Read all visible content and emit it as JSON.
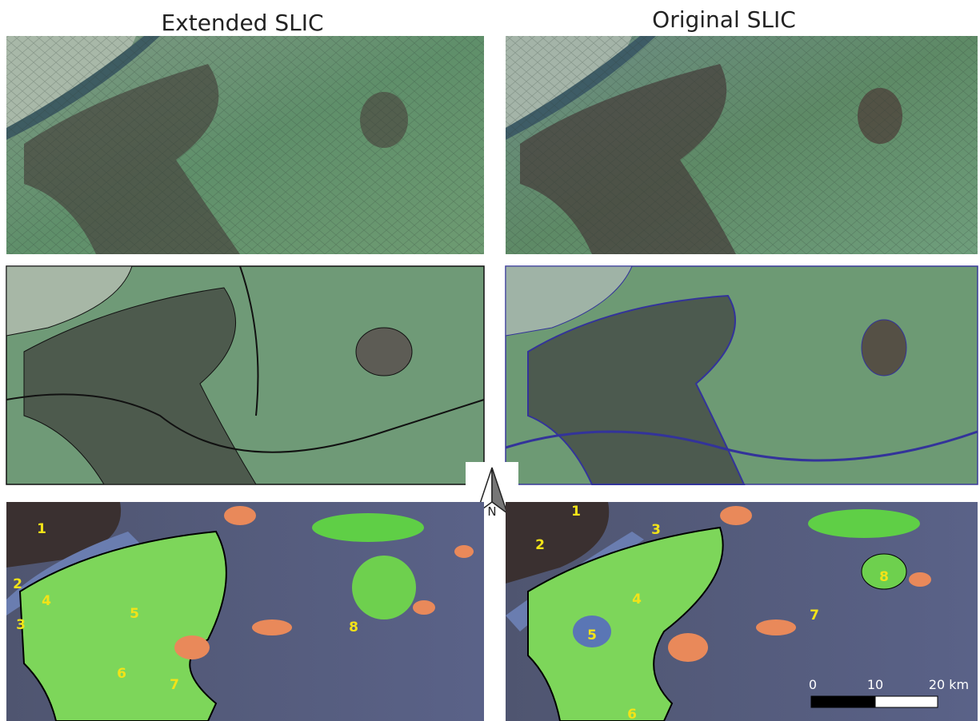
{
  "titles": [
    "Extended SLIC",
    "Original SLIC"
  ],
  "region_labels": {
    "left": [
      "1",
      "2",
      "3",
      "4",
      "5",
      "6",
      "7",
      "8"
    ],
    "right": [
      "1",
      "2",
      "3",
      "4",
      "5",
      "6",
      "7",
      "8"
    ]
  },
  "north_arrow": "N",
  "scale_bar": [
    "0",
    "10",
    "20 km"
  ]
}
